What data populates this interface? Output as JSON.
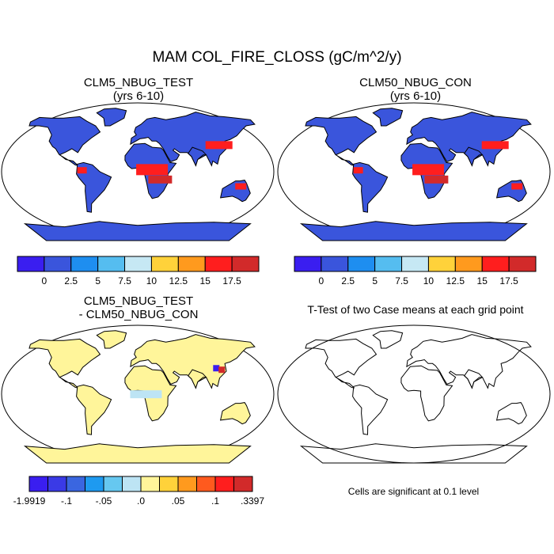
{
  "figure": {
    "title": "MAM COL_FIRE_CLOSS (gC/m^2/y)"
  },
  "panels": [
    {
      "title_line1": "CLM5_NBUG_TEST",
      "title_line2": "(yrs 6-10)"
    },
    {
      "title_line1": "CLM50_NBUG_CON",
      "title_line2": "(yrs 6-10)"
    },
    {
      "title_line1": "CLM5_NBUG_TEST",
      "title_line2": "- CLM50_NBUG_CON"
    },
    {
      "title_line1": "T-Test of two Case means at each grid point",
      "title_line2": ""
    }
  ],
  "colorbar_abs": {
    "colors": [
      "#3a1ef0",
      "#3a55dc",
      "#1e8ef0",
      "#55bdf0",
      "#c6e8f4",
      "#ffd23a",
      "#ff9a1e",
      "#ff1e1e",
      "#d22a2a"
    ],
    "labels": [
      "0",
      "2.5",
      "5",
      "7.5",
      "10",
      "12.5",
      "15",
      "17.5"
    ]
  },
  "colorbar_diff": {
    "colors": [
      "#3a1ef0",
      "#3a3ae6",
      "#3a66e0",
      "#1e9af0",
      "#66c8f0",
      "#bde4f4",
      "#fff59a",
      "#ffd23a",
      "#ff9a1e",
      "#ff5a1e",
      "#ff1e1e",
      "#d22a2a"
    ],
    "labels": [
      "-1.9919",
      "-.1",
      "-.05",
      ".0",
      ".05",
      ".1",
      ".3397"
    ]
  },
  "ttest_note": "Cells are significant at 0.1 level"
}
